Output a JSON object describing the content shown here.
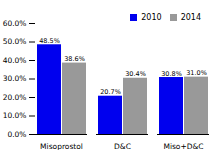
{
  "chart_data": {
    "type": "bar",
    "categories": [
      "Misoprostol",
      "D&C",
      "Miso+D&C"
    ],
    "series": [
      {
        "name": "2010",
        "color": "#0000EE",
        "values": [
          48.5,
          20.7,
          30.8
        ],
        "value_labels": [
          "48.5%",
          "20.7%",
          "30.8%"
        ]
      },
      {
        "name": "2014",
        "color": "#999999",
        "values": [
          38.6,
          30.4,
          31.0
        ],
        "value_labels": [
          "38.6%",
          "30.4%",
          "31.0%"
        ]
      }
    ],
    "ylim": [
      0,
      60
    ],
    "yticks": [
      {
        "value": 0,
        "label": "0.0%"
      },
      {
        "value": 10,
        "label": "10.0%"
      },
      {
        "value": 20,
        "label": "20.0%"
      },
      {
        "value": 30,
        "label": "30.0%"
      },
      {
        "value": 40,
        "label": "40.0%"
      },
      {
        "value": 50,
        "label": "50.0%"
      },
      {
        "value": 60,
        "label": "60.0%"
      }
    ],
    "legend": "upper right",
    "data_labels": true,
    "grid": false
  }
}
